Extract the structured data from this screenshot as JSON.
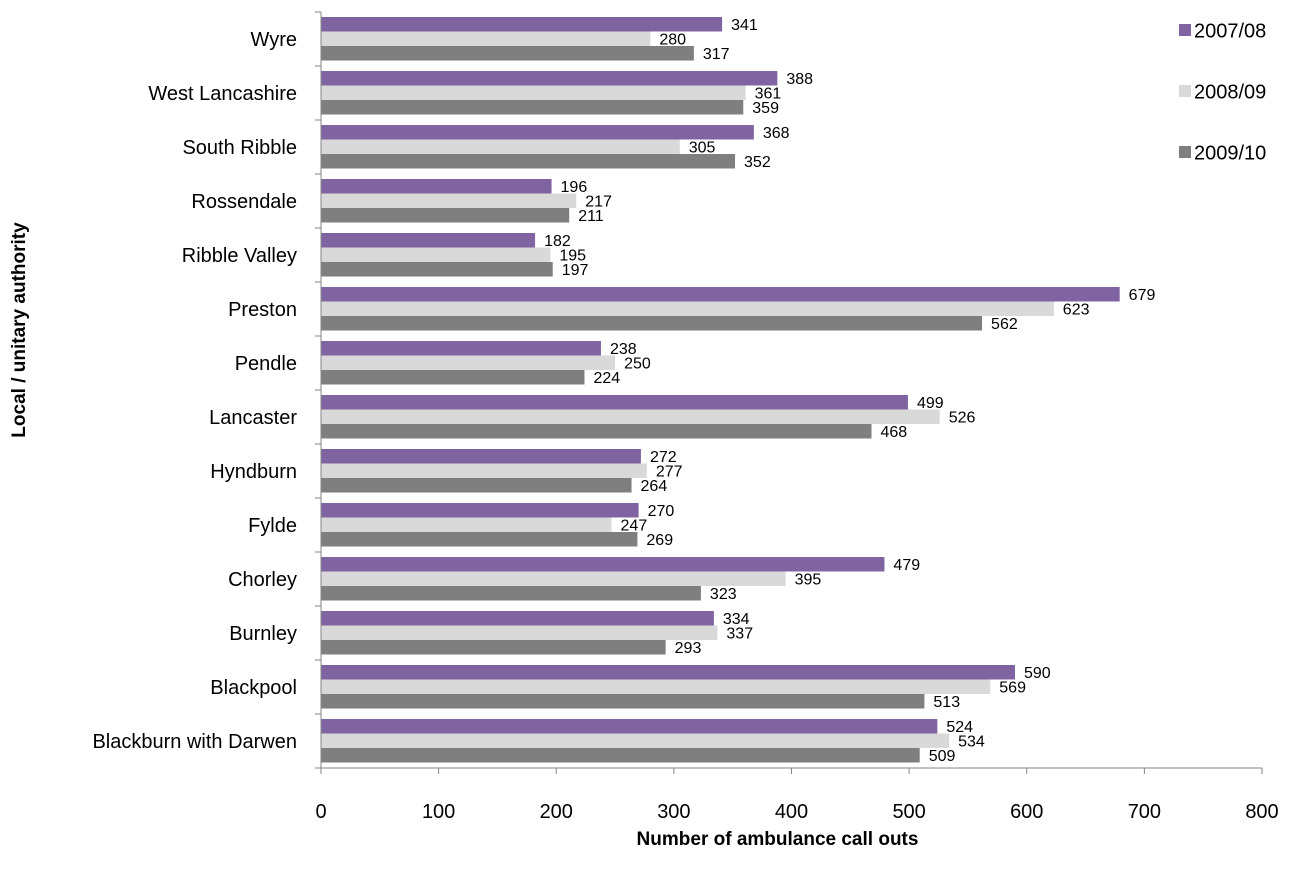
{
  "chart_data": {
    "type": "bar",
    "orientation": "horizontal",
    "categories": [
      "Wyre",
      "West Lancashire",
      "South Ribble",
      "Rossendale",
      "Ribble Valley",
      "Preston",
      "Pendle",
      "Lancaster",
      "Hyndburn",
      "Fylde",
      "Chorley",
      "Burnley",
      "Blackpool",
      "Blackburn with Darwen"
    ],
    "series": [
      {
        "name": "2007/08",
        "color": "#8064a2",
        "values": [
          341,
          388,
          368,
          196,
          182,
          679,
          238,
          499,
          272,
          270,
          479,
          334,
          590,
          524
        ]
      },
      {
        "name": "2008/09",
        "color": "#d9d9d9",
        "values": [
          280,
          361,
          305,
          217,
          195,
          623,
          250,
          526,
          277,
          247,
          395,
          337,
          569,
          534
        ]
      },
      {
        "name": "2009/10",
        "color": "#7f7f7f",
        "values": [
          317,
          359,
          352,
          211,
          197,
          562,
          224,
          468,
          264,
          269,
          323,
          293,
          513,
          509
        ]
      }
    ],
    "value_labels": [
      [
        "341",
        "388",
        "368",
        "196",
        "182",
        "679",
        "238",
        "499",
        "272",
        "270",
        "479",
        "334",
        "590",
        "524"
      ],
      [
        "280",
        "361",
        "305",
        "217",
        "195",
        "623",
        "250",
        "526",
        "277",
        "247",
        "395",
        "337",
        "569",
        "534"
      ],
      [
        "317",
        "359",
        "352",
        "211",
        "197",
        "562",
        "224",
        "468",
        "264",
        "269",
        "323",
        "293",
        "513",
        "509"
      ]
    ],
    "xlabel": "Number of ambulance call outs",
    "ylabel": "Local / unitary authority",
    "xlim": [
      0,
      800
    ],
    "xticks": [
      0,
      100,
      200,
      300,
      400,
      500,
      600,
      700,
      800
    ],
    "xtick_labels": [
      "0",
      "100",
      "200",
      "300",
      "400",
      "500",
      "600",
      "700",
      "800"
    ],
    "grid": false,
    "legend": "top-right",
    "axis_color": "#868686"
  }
}
